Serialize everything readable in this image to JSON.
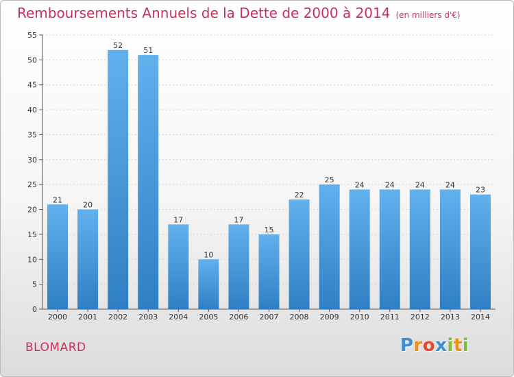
{
  "chart_data": {
    "type": "bar",
    "title": "Remboursements Annuels de la Dette de 2000 à 2014",
    "subtitle": "(en milliers d'€)",
    "categories": [
      "2000",
      "2001",
      "2002",
      "2003",
      "2004",
      "2005",
      "2006",
      "2007",
      "2008",
      "2009",
      "2010",
      "2011",
      "2012",
      "2013",
      "2014"
    ],
    "values": [
      21,
      20,
      52,
      51,
      17,
      10,
      17,
      15,
      22,
      25,
      24,
      24,
      24,
      24,
      23
    ],
    "ylim": [
      0,
      55
    ],
    "yticks": [
      0,
      5,
      10,
      15,
      20,
      25,
      30,
      35,
      40,
      45,
      50,
      55
    ],
    "grid": true,
    "bar_color_top": "#62b0ec",
    "bar_color_bottom": "#2f7fc4"
  },
  "commune": "BLOMARD",
  "brand": {
    "letters": [
      "P",
      "r",
      "o",
      "x",
      "i",
      "t",
      "i"
    ],
    "colors": [
      "#3e8ed0",
      "#f08c1a",
      "#e8472f",
      "#3e8ed0",
      "#7bbf3a",
      "#f08c1a",
      "#7bbf3a"
    ]
  },
  "colors": {
    "accent": "#c9315b"
  }
}
